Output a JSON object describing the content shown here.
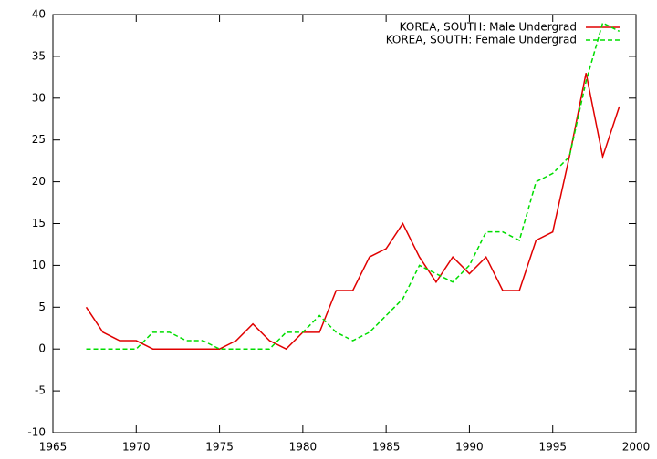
{
  "chart_data": {
    "type": "line",
    "x": [
      1967,
      1968,
      1969,
      1970,
      1971,
      1972,
      1973,
      1974,
      1975,
      1976,
      1977,
      1978,
      1979,
      1980,
      1981,
      1982,
      1983,
      1984,
      1985,
      1986,
      1987,
      1988,
      1989,
      1990,
      1991,
      1992,
      1993,
      1994,
      1995,
      1996,
      1997,
      1998,
      1999
    ],
    "series": [
      {
        "name": "KOREA, SOUTH: Male Undergrad",
        "color": "#e00000",
        "dash": false,
        "values": [
          5,
          2,
          1,
          1,
          0,
          0,
          0,
          0,
          0,
          1,
          3,
          1,
          0,
          2,
          2,
          7,
          7,
          11,
          12,
          15,
          11,
          8,
          11,
          9,
          11,
          7,
          7,
          13,
          14,
          23,
          33,
          23,
          29
        ]
      },
      {
        "name": "KOREA, SOUTH: Female Undergrad",
        "color": "#00dd00",
        "dash": true,
        "values": [
          0,
          0,
          0,
          0,
          2,
          2,
          1,
          1,
          0,
          0,
          0,
          0,
          2,
          2,
          4,
          2,
          1,
          2,
          4,
          6,
          10,
          9,
          8,
          10,
          14,
          14,
          13,
          20,
          21,
          23,
          32,
          39,
          38
        ]
      }
    ],
    "xlim": [
      1965,
      2000
    ],
    "xticks": [
      1965,
      1970,
      1975,
      1980,
      1985,
      1990,
      1995,
      2000
    ],
    "ylim": [
      -10,
      40
    ],
    "yticks": [
      -10,
      -5,
      0,
      5,
      10,
      15,
      20,
      25,
      30,
      35,
      40
    ],
    "grid": false,
    "legend": "top-right"
  }
}
